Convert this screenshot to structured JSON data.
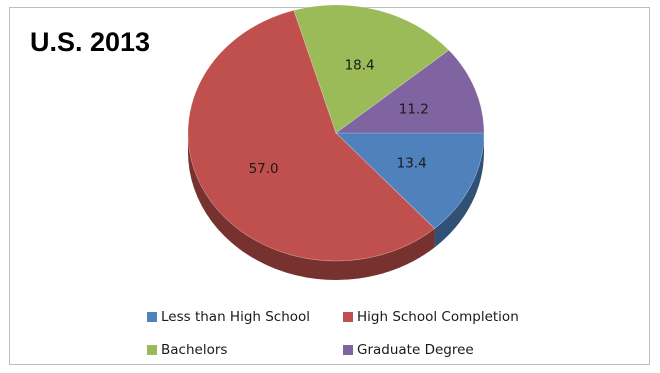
{
  "chart_data": {
    "type": "pie",
    "title": "U.S. 2013",
    "categories": [
      "Less than High School",
      "High School Completion",
      "Bachelors",
      "Graduate Degree"
    ],
    "values": [
      13.4,
      57.0,
      18.4,
      11.2
    ],
    "value_labels": [
      "13.4",
      "57.0",
      "18.4",
      "11.2"
    ],
    "colors": [
      "#4f81bd",
      "#c0504d",
      "#9bbb59",
      "#8064a2"
    ],
    "legend_position": "bottom",
    "style": "3d-tilted"
  }
}
